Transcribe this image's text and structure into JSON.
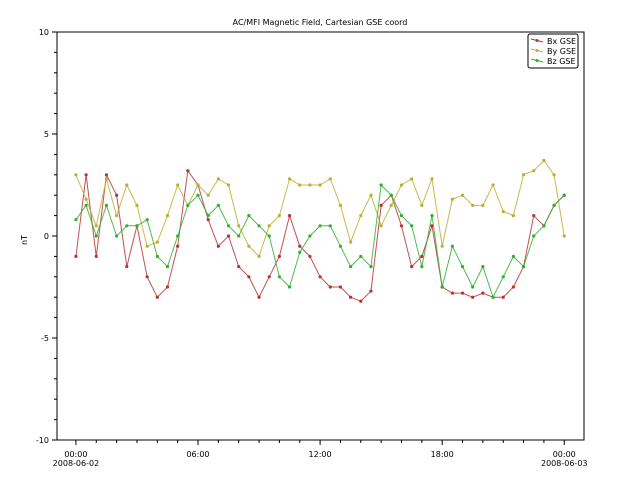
{
  "chart_data": {
    "type": "line",
    "title": "AC/MFI  Magnetic Field, Cartesian GSE coord",
    "xlabel": "",
    "ylabel": "nT",
    "ylim": [
      -10,
      10
    ],
    "xlim_hours": [
      -0.93,
      24.97
    ],
    "yticks": [
      {
        "value": -10,
        "label": "-10"
      },
      {
        "value": -5,
        "label": "-5"
      },
      {
        "value": 0,
        "label": "0"
      },
      {
        "value": 5,
        "label": "5"
      },
      {
        "value": 10,
        "label": "10"
      }
    ],
    "xticks": [
      {
        "hour": 0,
        "label": "00:00",
        "date": "2008-06-02"
      },
      {
        "hour": 6,
        "label": "06:00",
        "date": ""
      },
      {
        "hour": 12,
        "label": "12:00",
        "date": ""
      },
      {
        "hour": 18,
        "label": "18:00",
        "date": ""
      },
      {
        "hour": 24,
        "label": "00:00",
        "date": "2008-06-03"
      }
    ],
    "grid": false,
    "legend": "top-right",
    "x_hours": [
      0,
      0.5,
      1,
      1.5,
      2,
      2.5,
      3,
      3.5,
      4,
      4.5,
      5,
      5.5,
      6,
      6.5,
      7,
      7.5,
      8,
      8.5,
      9,
      9.5,
      10,
      10.5,
      11,
      11.5,
      12,
      12.5,
      13,
      13.5,
      14,
      14.5,
      15,
      15.5,
      16,
      16.5,
      17,
      17.5,
      18,
      18.5,
      19,
      19.5,
      20,
      20.5,
      21,
      21.5,
      22,
      22.5,
      23,
      23.5,
      24
    ],
    "series": [
      {
        "name": "Bx GSE",
        "color": "#b83232",
        "values": [
          -1.0,
          3.0,
          -1.0,
          3.0,
          2.0,
          -1.5,
          0.5,
          -2.0,
          -3.0,
          -2.5,
          -0.5,
          3.2,
          2.5,
          0.8,
          -0.5,
          0.0,
          -1.5,
          -2.0,
          -3.0,
          -2.0,
          -1.0,
          1.0,
          -0.5,
          -1.0,
          -2.0,
          -2.5,
          -2.5,
          -3.0,
          -3.2,
          -2.7,
          1.5,
          2.0,
          0.5,
          -1.5,
          -1.0,
          0.5,
          -2.5,
          -2.8,
          -2.8,
          -3.0,
          -2.8,
          -3.0,
          -3.0,
          -2.5,
          -1.5,
          1.0,
          0.5,
          1.5,
          2.0
        ]
      },
      {
        "name": "By GSE",
        "color": "#b8b030",
        "values": [
          3.0,
          1.8,
          0.5,
          2.8,
          1.0,
          2.5,
          1.5,
          -0.5,
          -0.3,
          1.0,
          2.5,
          1.5,
          2.5,
          2.0,
          2.8,
          2.5,
          0.5,
          -0.5,
          -1.0,
          0.5,
          1.0,
          2.8,
          2.5,
          2.5,
          2.5,
          2.8,
          1.5,
          -0.3,
          1.0,
          2.0,
          0.5,
          1.5,
          2.5,
          2.8,
          1.5,
          2.8,
          -0.5,
          1.8,
          2.0,
          1.5,
          1.5,
          2.5,
          1.2,
          1.0,
          3.0,
          3.2,
          3.7,
          3.0,
          0.0
        ]
      },
      {
        "name": "Bz GSE",
        "color": "#30b030",
        "values": [
          0.8,
          1.5,
          0.0,
          1.5,
          0.0,
          0.5,
          0.5,
          0.8,
          -1.0,
          -1.5,
          0.0,
          1.5,
          2.0,
          1.0,
          1.5,
          0.5,
          0.0,
          1.0,
          0.5,
          0.0,
          -2.0,
          -2.5,
          -0.8,
          0.0,
          0.5,
          0.5,
          -0.5,
          -1.5,
          -1.0,
          -1.5,
          2.5,
          2.0,
          1.0,
          0.5,
          -1.5,
          1.0,
          -2.5,
          -0.5,
          -1.5,
          -2.5,
          -1.5,
          -3.0,
          -2.0,
          -1.0,
          -1.5,
          0.0,
          0.5,
          1.5,
          2.0
        ]
      }
    ]
  }
}
